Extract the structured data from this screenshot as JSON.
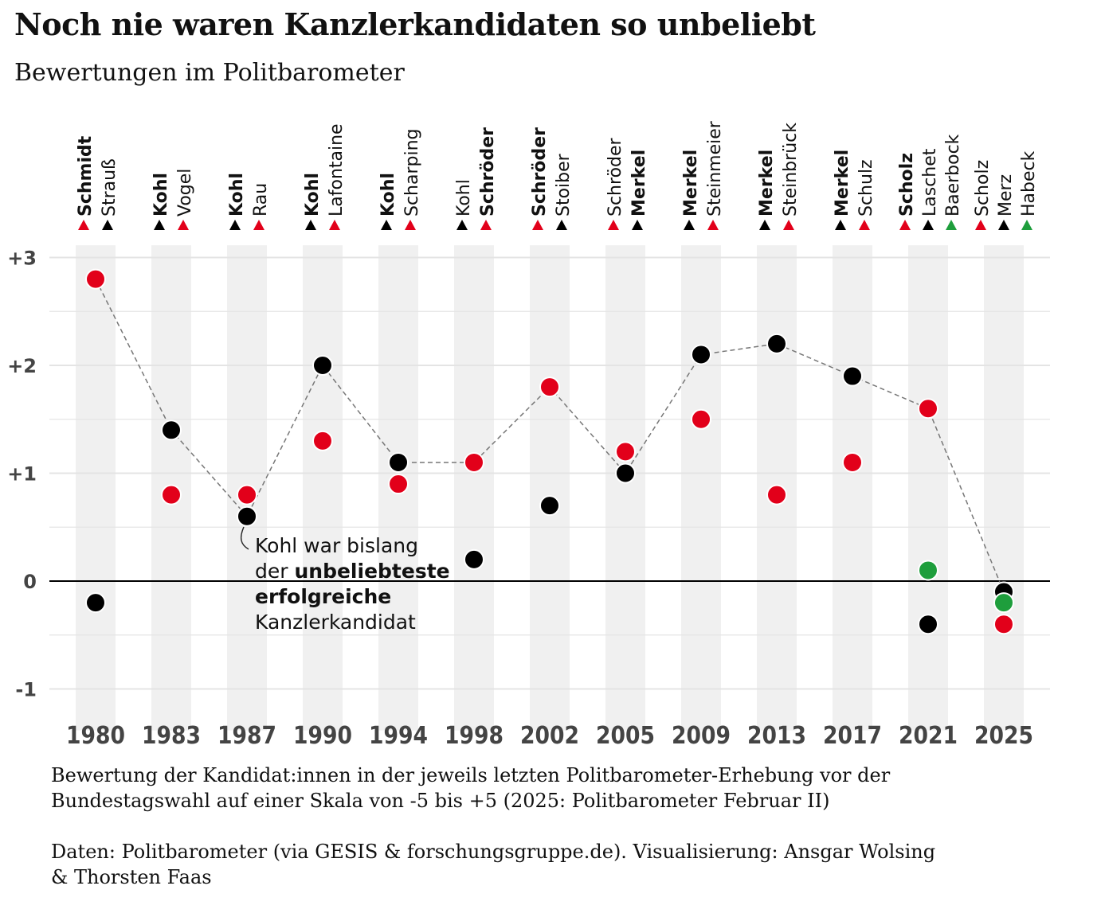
{
  "title": "Noch nie waren Kanzlerkandidaten so unbeliebt",
  "subtitle": "Bewertungen im Politbarometer",
  "colors": {
    "spd": "#e2001a",
    "union": "#000000",
    "gruene": "#1e9e3c",
    "band": "#f0f0f0",
    "grid": "#e4e4e4"
  },
  "chart_data": {
    "type": "scatter",
    "ylim": [
      -1.2,
      3.15
    ],
    "yticks": [
      {
        "value": 3,
        "label": "+3"
      },
      {
        "value": 2,
        "label": "+2"
      },
      {
        "value": 1,
        "label": "+1"
      },
      {
        "value": 0,
        "label": "0"
      },
      {
        "value": -1,
        "label": "-1"
      }
    ],
    "elections": [
      {
        "year": "1980",
        "candidates": [
          {
            "name": "Schmidt",
            "party": "spd",
            "winner": true,
            "value": 2.8
          },
          {
            "name": "Strauß",
            "party": "union",
            "winner": false,
            "value": -0.2
          }
        ]
      },
      {
        "year": "1983",
        "candidates": [
          {
            "name": "Kohl",
            "party": "union",
            "winner": true,
            "value": 1.4
          },
          {
            "name": "Vogel",
            "party": "spd",
            "winner": false,
            "value": 0.8
          }
        ]
      },
      {
        "year": "1987",
        "candidates": [
          {
            "name": "Kohl",
            "party": "union",
            "winner": true,
            "value": 0.6
          },
          {
            "name": "Rau",
            "party": "spd",
            "winner": false,
            "value": 0.8
          }
        ]
      },
      {
        "year": "1990",
        "candidates": [
          {
            "name": "Kohl",
            "party": "union",
            "winner": true,
            "value": 2.0
          },
          {
            "name": "Lafontaine",
            "party": "spd",
            "winner": false,
            "value": 1.3
          }
        ]
      },
      {
        "year": "1994",
        "candidates": [
          {
            "name": "Kohl",
            "party": "union",
            "winner": true,
            "value": 1.1
          },
          {
            "name": "Scharping",
            "party": "spd",
            "winner": false,
            "value": 0.9
          }
        ]
      },
      {
        "year": "1998",
        "candidates": [
          {
            "name": "Kohl",
            "party": "union",
            "winner": false,
            "value": 0.2
          },
          {
            "name": "Schröder",
            "party": "spd",
            "winner": true,
            "value": 1.1
          }
        ]
      },
      {
        "year": "2002",
        "candidates": [
          {
            "name": "Schröder",
            "party": "spd",
            "winner": true,
            "value": 1.8
          },
          {
            "name": "Stoiber",
            "party": "union",
            "winner": false,
            "value": 0.7
          }
        ]
      },
      {
        "year": "2005",
        "candidates": [
          {
            "name": "Schröder",
            "party": "spd",
            "winner": false,
            "value": 1.2
          },
          {
            "name": "Merkel",
            "party": "union",
            "winner": true,
            "value": 1.0
          }
        ]
      },
      {
        "year": "2009",
        "candidates": [
          {
            "name": "Merkel",
            "party": "union",
            "winner": true,
            "value": 2.1
          },
          {
            "name": "Steinmeier",
            "party": "spd",
            "winner": false,
            "value": 1.5
          }
        ]
      },
      {
        "year": "2013",
        "candidates": [
          {
            "name": "Merkel",
            "party": "union",
            "winner": true,
            "value": 2.2
          },
          {
            "name": "Steinbrück",
            "party": "spd",
            "winner": false,
            "value": 0.8
          }
        ]
      },
      {
        "year": "2017",
        "candidates": [
          {
            "name": "Merkel",
            "party": "union",
            "winner": true,
            "value": 1.9
          },
          {
            "name": "Schulz",
            "party": "spd",
            "winner": false,
            "value": 1.1
          }
        ]
      },
      {
        "year": "2021",
        "candidates": [
          {
            "name": "Scholz",
            "party": "spd",
            "winner": true,
            "value": 1.6
          },
          {
            "name": "Laschet",
            "party": "union",
            "winner": false,
            "value": -0.4
          },
          {
            "name": "Baerbock",
            "party": "gruene",
            "winner": false,
            "value": 0.1
          }
        ]
      },
      {
        "year": "2025",
        "candidates": [
          {
            "name": "Scholz",
            "party": "spd",
            "winner": false,
            "value": -0.4
          },
          {
            "name": "Merz",
            "party": "union",
            "winner": false,
            "value": -0.1
          },
          {
            "name": "Habeck",
            "party": "gruene",
            "winner": false,
            "value": -0.2
          }
        ]
      }
    ],
    "annotation": {
      "line1": "Kohl war bislang",
      "line2_a": "der ",
      "line2_b": "unbeliebteste",
      "line3": "erfolgreiche",
      "line4": "Kanzlerkandidat"
    }
  },
  "notes": {
    "definition_line1": "Bewertung der Kandidat:innen in der jeweils letzten Politbarometer-Erhebung vor der",
    "definition_line2": "Bundestagswahl auf einer Skala von -5 bis +5 (2025: Politbarometer Februar II)",
    "source_line1": "Daten: Politbarometer (via GESIS & forschungsgruppe.de). Visualisierung: Ansgar Wolsing",
    "source_line2": "& Thorsten Faas"
  }
}
